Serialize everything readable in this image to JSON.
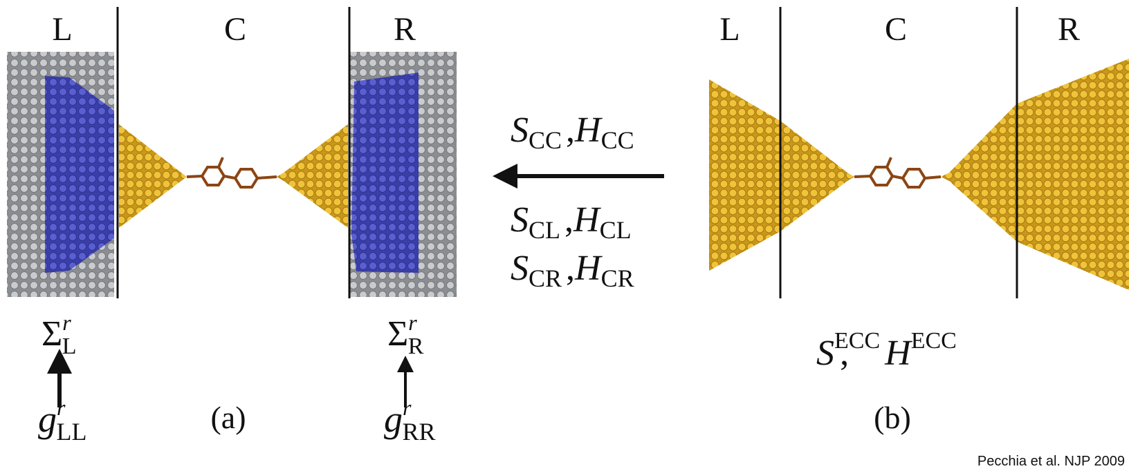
{
  "panel_a": {
    "regions": [
      "L",
      "C",
      "R"
    ],
    "self_energies": [
      {
        "symbol": "Σ",
        "sup": "r",
        "sub": "L"
      },
      {
        "symbol": "Σ",
        "sup": "r",
        "sub": "R"
      }
    ],
    "surface_gf": [
      {
        "symbol": "g",
        "sup": "r",
        "sub": "LL"
      },
      {
        "symbol": "g",
        "sup": "r",
        "sub": "RR"
      }
    ],
    "label": "(a)"
  },
  "transfer": {
    "separator": ",",
    "terms": [
      [
        {
          "symbol": "S",
          "sub": "CC"
        },
        {
          "symbol": "H",
          "sub": "CC"
        }
      ],
      [
        {
          "symbol": "S",
          "sub": "CL"
        },
        {
          "symbol": "H",
          "sub": "CL"
        }
      ],
      [
        {
          "symbol": "S",
          "sub": "CR"
        },
        {
          "symbol": "H",
          "sub": "CR"
        }
      ]
    ]
  },
  "panel_b": {
    "regions": [
      "L",
      "C",
      "R"
    ],
    "matrices": [
      {
        "symbol": "S",
        "sup": "ECC"
      },
      {
        "symbol": "H",
        "sup": "ECC"
      }
    ],
    "separator": ",",
    "label": "(b)"
  },
  "credit": "Pecchia et al. NJP 2009"
}
